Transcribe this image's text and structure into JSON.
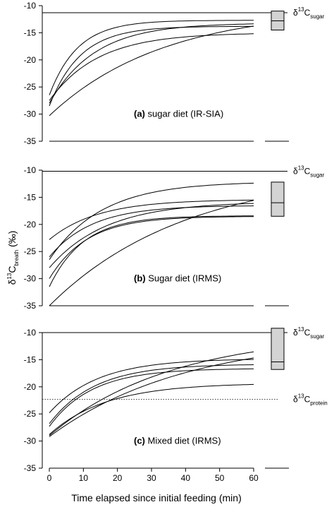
{
  "xlabel": "Time elapsed since initial feeding (min)",
  "ylabel": {
    "delta": "δ",
    "sup": "13",
    "C": "C",
    "sub": "breath",
    "unit": " (‰)"
  },
  "chart_data": [
    {
      "type": "line",
      "panel": "a",
      "label_letter": "(a)",
      "label_text": "sugar diet (IR-SIA)",
      "x": [
        0,
        60
      ],
      "xlim": [
        0,
        60
      ],
      "ylim": [
        -35,
        -10
      ],
      "yticks": [
        -10,
        -15,
        -20,
        -25,
        -30,
        -35
      ],
      "xticks": [
        0,
        10,
        20,
        30,
        40,
        50,
        60
      ],
      "reference_lines": [
        {
          "y": -11.3,
          "style": "solid",
          "label_main": "C",
          "label_sub": "sugar"
        }
      ],
      "curves": [
        {
          "y0": -26.5,
          "asym": -12.7,
          "k": 0.12
        },
        {
          "y0": -28.0,
          "asym": -13.2,
          "k": 0.075
        },
        {
          "y0": -28.5,
          "asym": -13.8,
          "k": 0.11
        },
        {
          "y0": -27.5,
          "asym": -15.0,
          "k": 0.07
        },
        {
          "y0": -30.3,
          "asym": -10.5,
          "k": 0.03
        }
      ],
      "boxplot": {
        "q1": -14.5,
        "median": -12.8,
        "q3": -11.0,
        "min": -14.5,
        "max": -11.0
      }
    },
    {
      "type": "line",
      "panel": "b",
      "label_letter": "(b)",
      "label_text": "Sugar diet (IRMS)",
      "xlim": [
        0,
        60
      ],
      "ylim": [
        -35,
        -10
      ],
      "yticks": [
        -10,
        -15,
        -20,
        -25,
        -30,
        -35
      ],
      "xticks": [
        0,
        10,
        20,
        30,
        40,
        50,
        60
      ],
      "reference_lines": [
        {
          "y": -10.2,
          "style": "solid",
          "label_main": "C",
          "label_sub": "sugar"
        }
      ],
      "curves": [
        {
          "y0": -26.5,
          "asym": -12.1,
          "k": 0.065
        },
        {
          "y0": -22.8,
          "asym": -15.4,
          "k": 0.07
        },
        {
          "y0": -26.0,
          "asym": -16.5,
          "k": 0.08
        },
        {
          "y0": -28.0,
          "asym": -15.8,
          "k": 0.06
        },
        {
          "y0": -31.5,
          "asym": -18.4,
          "k": 0.1
        },
        {
          "y0": -30.0,
          "asym": -18.5,
          "k": 0.09
        },
        {
          "y0": -35.0,
          "asym": -10.0,
          "k": 0.025
        }
      ],
      "boxplot": {
        "q1": -18.5,
        "median": -16.0,
        "q3": -12.2,
        "min": -18.5,
        "max": -12.2
      }
    },
    {
      "type": "line",
      "panel": "c",
      "label_letter": "(c)",
      "label_text": "Mixed diet (IRMS)",
      "xlim": [
        0,
        60
      ],
      "ylim": [
        -35,
        -10
      ],
      "yticks": [
        -10,
        -15,
        -20,
        -25,
        -30,
        -35
      ],
      "xticks": [
        0,
        10,
        20,
        30,
        40,
        50,
        60
      ],
      "reference_lines": [
        {
          "y": -10.0,
          "style": "solid",
          "label_main": "C",
          "label_sub": "sugar"
        },
        {
          "y": -22.3,
          "style": "dotted",
          "label_main": "C",
          "label_sub": "protein"
        }
      ],
      "curves": [
        {
          "y0": -24.8,
          "asym": -14.8,
          "k": 0.07
        },
        {
          "y0": -26.8,
          "asym": -15.8,
          "k": 0.075
        },
        {
          "y0": -27.3,
          "asym": -16.6,
          "k": 0.08
        },
        {
          "y0": -28.8,
          "asym": -19.3,
          "k": 0.06
        },
        {
          "y0": -29.2,
          "asym": -10.5,
          "k": 0.025
        },
        {
          "y0": -29.0,
          "asym": -10.0,
          "k": 0.028
        }
      ],
      "boxplot": {
        "q1": -16.8,
        "median": -15.4,
        "q3": -9.2,
        "min": -16.8,
        "max": -9.2
      }
    }
  ]
}
